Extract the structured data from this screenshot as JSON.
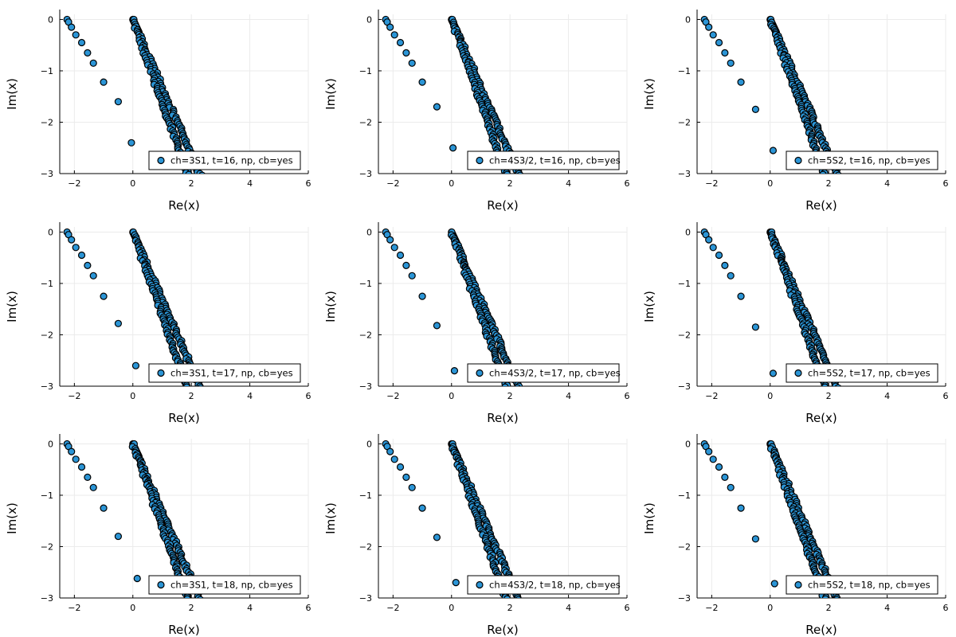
{
  "chart_data": [
    {
      "type": "scatter",
      "legend": "ch=3S1, t=16, np,  cb=yes",
      "xlabel": "Re(x)",
      "ylabel": "Im(x)",
      "xlim": [
        -2.5,
        6
      ],
      "ylim": [
        -3,
        0.1
      ],
      "xticks": [
        -2,
        0,
        2,
        4,
        6
      ],
      "yticks": [
        -3,
        -2,
        -1,
        0
      ],
      "x_tick_labels": [
        "−2",
        "0",
        "2",
        "4",
        "6"
      ],
      "y_tick_labels": [
        "−3",
        "−2",
        "−1",
        "0"
      ],
      "grid": true,
      "legend_position": "bottom-right",
      "marker_color": "#2b95d6",
      "outer_points": [
        [
          -2.25,
          0
        ],
        [
          -2.2,
          -0.05
        ],
        [
          -2.1,
          -0.15
        ],
        [
          -1.95,
          -0.3
        ],
        [
          -1.75,
          -0.45
        ],
        [
          -1.55,
          -0.65
        ],
        [
          -1.35,
          -0.85
        ],
        [
          -1.0,
          -1.22
        ],
        [
          -0.5,
          -1.6
        ],
        [
          -0.05,
          -2.4
        ]
      ]
    },
    {
      "type": "scatter",
      "legend": "ch=4S3/2, t=16, np,  cb=yes",
      "xlabel": "Re(x)",
      "ylabel": "Im(x)",
      "xlim": [
        -2.5,
        6
      ],
      "ylim": [
        -3,
        0.1
      ],
      "xticks": [
        -2,
        0,
        2,
        4,
        6
      ],
      "yticks": [
        -3,
        -2,
        -1,
        0
      ],
      "x_tick_labels": [
        "−2",
        "0",
        "2",
        "4",
        "6"
      ],
      "y_tick_labels": [
        "−3",
        "−2",
        "−1",
        "0"
      ],
      "grid": true,
      "legend_position": "bottom-right",
      "marker_color": "#2b95d6",
      "outer_points": [
        [
          -2.25,
          0
        ],
        [
          -2.2,
          -0.05
        ],
        [
          -2.1,
          -0.15
        ],
        [
          -1.95,
          -0.3
        ],
        [
          -1.75,
          -0.45
        ],
        [
          -1.55,
          -0.65
        ],
        [
          -1.35,
          -0.85
        ],
        [
          -1.0,
          -1.22
        ],
        [
          -0.5,
          -1.7
        ],
        [
          0.05,
          -2.5
        ]
      ]
    },
    {
      "type": "scatter",
      "legend": "ch=5S2, t=16, np,  cb=yes",
      "xlabel": "Re(x)",
      "ylabel": "Im(x)",
      "xlim": [
        -2.5,
        6
      ],
      "ylim": [
        -3,
        0.1
      ],
      "xticks": [
        -2,
        0,
        2,
        4,
        6
      ],
      "yticks": [
        -3,
        -2,
        -1,
        0
      ],
      "x_tick_labels": [
        "−2",
        "0",
        "2",
        "4",
        "6"
      ],
      "y_tick_labels": [
        "−3",
        "−2",
        "−1",
        "0"
      ],
      "grid": true,
      "legend_position": "bottom-right",
      "marker_color": "#2b95d6",
      "outer_points": [
        [
          -2.25,
          0
        ],
        [
          -2.2,
          -0.05
        ],
        [
          -2.1,
          -0.15
        ],
        [
          -1.95,
          -0.3
        ],
        [
          -1.75,
          -0.45
        ],
        [
          -1.55,
          -0.65
        ],
        [
          -1.35,
          -0.85
        ],
        [
          -1.0,
          -1.22
        ],
        [
          -0.5,
          -1.75
        ],
        [
          0.1,
          -2.55
        ]
      ]
    },
    {
      "type": "scatter",
      "legend": "ch=3S1, t=17, np,  cb=yes",
      "xlabel": "Re(x)",
      "ylabel": "Im(x)",
      "xlim": [
        -2.5,
        6
      ],
      "ylim": [
        -3,
        0.1
      ],
      "xticks": [
        -2,
        0,
        2,
        4,
        6
      ],
      "yticks": [
        -3,
        -2,
        -1,
        0
      ],
      "x_tick_labels": [
        "−2",
        "0",
        "2",
        "4",
        "6"
      ],
      "y_tick_labels": [
        "−3",
        "−2",
        "−1",
        "0"
      ],
      "grid": true,
      "legend_position": "bottom-right",
      "marker_color": "#2b95d6",
      "outer_points": [
        [
          -2.25,
          0
        ],
        [
          -2.2,
          -0.05
        ],
        [
          -2.1,
          -0.15
        ],
        [
          -1.95,
          -0.3
        ],
        [
          -1.75,
          -0.45
        ],
        [
          -1.55,
          -0.65
        ],
        [
          -1.35,
          -0.85
        ],
        [
          -1.0,
          -1.25
        ],
        [
          -0.5,
          -1.78
        ],
        [
          0.1,
          -2.6
        ]
      ]
    },
    {
      "type": "scatter",
      "legend": "ch=4S3/2, t=17, np,  cb=yes",
      "xlabel": "Re(x)",
      "ylabel": "Im(x)",
      "xlim": [
        -2.5,
        6
      ],
      "ylim": [
        -3,
        0.1
      ],
      "xticks": [
        -2,
        0,
        2,
        4,
        6
      ],
      "yticks": [
        -3,
        -2,
        -1,
        0
      ],
      "x_tick_labels": [
        "−2",
        "0",
        "2",
        "4",
        "6"
      ],
      "y_tick_labels": [
        "−3",
        "−2",
        "−1",
        "0"
      ],
      "grid": true,
      "legend_position": "bottom-right",
      "marker_color": "#2b95d6",
      "outer_points": [
        [
          -2.25,
          0
        ],
        [
          -2.2,
          -0.05
        ],
        [
          -2.1,
          -0.15
        ],
        [
          -1.95,
          -0.3
        ],
        [
          -1.75,
          -0.45
        ],
        [
          -1.55,
          -0.65
        ],
        [
          -1.35,
          -0.85
        ],
        [
          -1.0,
          -1.25
        ],
        [
          -0.5,
          -1.82
        ],
        [
          0.1,
          -2.7
        ]
      ]
    },
    {
      "type": "scatter",
      "legend": "ch=5S2, t=17, np,  cb=yes",
      "xlabel": "Re(x)",
      "ylabel": "Im(x)",
      "xlim": [
        -2.5,
        6
      ],
      "ylim": [
        -3,
        0.1
      ],
      "xticks": [
        -2,
        0,
        2,
        4,
        6
      ],
      "yticks": [
        -3,
        -2,
        -1,
        0
      ],
      "x_tick_labels": [
        "−2",
        "0",
        "2",
        "4",
        "6"
      ],
      "y_tick_labels": [
        "−3",
        "−2",
        "−1",
        "0"
      ],
      "grid": true,
      "legend_position": "bottom-right",
      "marker_color": "#2b95d6",
      "outer_points": [
        [
          -2.25,
          0
        ],
        [
          -2.2,
          -0.05
        ],
        [
          -2.1,
          -0.15
        ],
        [
          -1.95,
          -0.3
        ],
        [
          -1.75,
          -0.45
        ],
        [
          -1.55,
          -0.65
        ],
        [
          -1.35,
          -0.85
        ],
        [
          -1.0,
          -1.25
        ],
        [
          -0.5,
          -1.85
        ],
        [
          0.1,
          -2.75
        ]
      ]
    },
    {
      "type": "scatter",
      "legend": "ch=3S1, t=18, np,  cb=yes",
      "xlabel": "Re(x)",
      "ylabel": "Im(x)",
      "xlim": [
        -2.5,
        6
      ],
      "ylim": [
        -3,
        0.1
      ],
      "xticks": [
        -2,
        0,
        2,
        4,
        6
      ],
      "yticks": [
        -3,
        -2,
        -1,
        0
      ],
      "x_tick_labels": [
        "−2",
        "0",
        "2",
        "4",
        "6"
      ],
      "y_tick_labels": [
        "−3",
        "−2",
        "−1",
        "0"
      ],
      "grid": true,
      "legend_position": "bottom-right",
      "marker_color": "#2b95d6",
      "outer_points": [
        [
          -2.25,
          0
        ],
        [
          -2.2,
          -0.05
        ],
        [
          -2.1,
          -0.15
        ],
        [
          -1.95,
          -0.3
        ],
        [
          -1.75,
          -0.45
        ],
        [
          -1.55,
          -0.65
        ],
        [
          -1.35,
          -0.85
        ],
        [
          -1.0,
          -1.25
        ],
        [
          -0.5,
          -1.8
        ],
        [
          0.15,
          -2.62
        ]
      ]
    },
    {
      "type": "scatter",
      "legend": "ch=4S3/2, t=18, np,  cb=yes",
      "xlabel": "Re(x)",
      "ylabel": "Im(x)",
      "xlim": [
        -2.5,
        6
      ],
      "ylim": [
        -3,
        0.1
      ],
      "xticks": [
        -2,
        0,
        2,
        4,
        6
      ],
      "yticks": [
        -3,
        -2,
        -1,
        0
      ],
      "x_tick_labels": [
        "−2",
        "0",
        "2",
        "4",
        "6"
      ],
      "y_tick_labels": [
        "−3",
        "−2",
        "−1",
        "0"
      ],
      "grid": true,
      "legend_position": "bottom-right",
      "marker_color": "#2b95d6",
      "outer_points": [
        [
          -2.25,
          0
        ],
        [
          -2.2,
          -0.05
        ],
        [
          -2.1,
          -0.15
        ],
        [
          -1.95,
          -0.3
        ],
        [
          -1.75,
          -0.45
        ],
        [
          -1.55,
          -0.65
        ],
        [
          -1.35,
          -0.85
        ],
        [
          -1.0,
          -1.25
        ],
        [
          -0.5,
          -1.82
        ],
        [
          0.15,
          -2.7
        ]
      ]
    },
    {
      "type": "scatter",
      "legend": "ch=5S2, t=18, np,  cb=yes",
      "xlabel": "Re(x)",
      "ylabel": "Im(x)",
      "xlim": [
        -2.5,
        6
      ],
      "ylim": [
        -3,
        0.1
      ],
      "xticks": [
        -2,
        0,
        2,
        4,
        6
      ],
      "yticks": [
        -3,
        -2,
        -1,
        0
      ],
      "x_tick_labels": [
        "−2",
        "0",
        "2",
        "4",
        "6"
      ],
      "y_tick_labels": [
        "−3",
        "−2",
        "−1",
        "0"
      ],
      "grid": true,
      "legend_position": "bottom-right",
      "marker_color": "#2b95d6",
      "outer_points": [
        [
          -2.25,
          0
        ],
        [
          -2.2,
          -0.05
        ],
        [
          -2.1,
          -0.15
        ],
        [
          -1.95,
          -0.3
        ],
        [
          -1.75,
          -0.45
        ],
        [
          -1.55,
          -0.65
        ],
        [
          -1.35,
          -0.85
        ],
        [
          -1.0,
          -1.25
        ],
        [
          -0.5,
          -1.85
        ],
        [
          0.15,
          -2.72
        ]
      ]
    }
  ]
}
